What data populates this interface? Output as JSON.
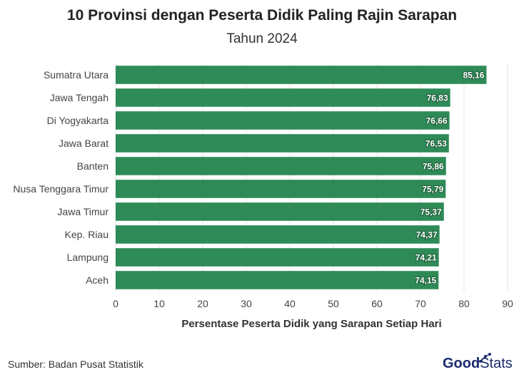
{
  "title": "10 Provinsi dengan Peserta Didik Paling Rajin Sarapan",
  "subtitle": "Tahun 2024",
  "source": "Sumber: Badan Pusat Statistik",
  "logo": {
    "good": "Good",
    "stats": "Stats"
  },
  "colors": {
    "bar": "#2e8b57",
    "grid": "#e6e6e6",
    "logo": "#1a2a6c"
  },
  "chart_data": {
    "type": "bar",
    "orientation": "horizontal",
    "categories": [
      "Sumatra Utara",
      "Jawa Tengah",
      "Di Yogyakarta",
      "Jawa Barat",
      "Banten",
      "Nusa Tenggara Timur",
      "Jawa Timur",
      "Kep. Riau",
      "Lampung",
      "Aceh"
    ],
    "values": [
      85.16,
      76.83,
      76.66,
      76.53,
      75.86,
      75.79,
      75.37,
      74.37,
      74.21,
      74.15
    ],
    "value_labels": [
      "85,16",
      "76,83",
      "76,66",
      "76,53",
      "75,86",
      "75,79",
      "75,37",
      "74,37",
      "74,21",
      "74,15"
    ],
    "xlabel": "Persentase Peserta Didik yang Sarapan Setiap Hari",
    "ylabel": "",
    "xlim": [
      0,
      90
    ],
    "xticks": [
      0,
      10,
      20,
      30,
      40,
      50,
      60,
      70,
      80,
      90
    ],
    "grid": true,
    "legend": "none"
  }
}
